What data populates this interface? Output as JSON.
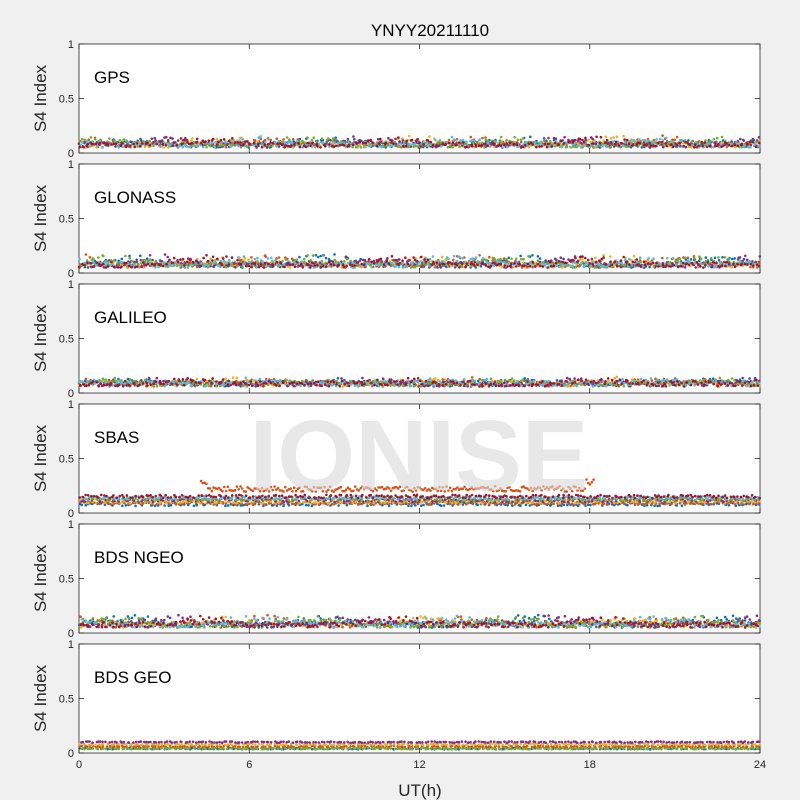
{
  "figure": {
    "title": "YNYY20211110",
    "xlabel": "UT(h)",
    "watermark": "IONISE"
  },
  "colors": [
    "#0072BD",
    "#D95319",
    "#EDB120",
    "#7E2F8E",
    "#77AC30",
    "#4DBEEE",
    "#A2142F"
  ],
  "chart_data": [
    {
      "type": "scatter",
      "panel": "GPS",
      "label": "GPS",
      "ylabel": "S4 Index",
      "xlim": [
        0,
        24
      ],
      "ylim": [
        0,
        1
      ],
      "xticks": [
        0,
        6,
        12,
        18,
        24
      ],
      "yticks": [
        0,
        0.5,
        1
      ],
      "yticklabels": [
        "0",
        "0.5",
        "1"
      ],
      "series_summary": {
        "baseline": 0.07,
        "typical_max": 0.18,
        "x_range": [
          0,
          24
        ],
        "series_count": 7
      }
    },
    {
      "type": "scatter",
      "panel": "GLONASS",
      "label": "GLONASS",
      "ylabel": "S4 Index",
      "xlim": [
        0,
        24
      ],
      "ylim": [
        0,
        1
      ],
      "xticks": [
        0,
        6,
        12,
        18,
        24
      ],
      "yticks": [
        0,
        0.5,
        1
      ],
      "yticklabels": [
        "0",
        "0.5",
        "1"
      ],
      "series_summary": {
        "baseline": 0.07,
        "typical_max": 0.2,
        "x_range": [
          0,
          24
        ],
        "series_count": 7
      }
    },
    {
      "type": "scatter",
      "panel": "GALILEO",
      "label": "GALILEO",
      "ylabel": "S4 Index",
      "xlim": [
        0,
        24
      ],
      "ylim": [
        0,
        1
      ],
      "xticks": [
        0,
        6,
        12,
        18,
        24
      ],
      "yticks": [
        0,
        0.5,
        1
      ],
      "yticklabels": [
        "0",
        "0.5",
        "1"
      ],
      "series_summary": {
        "baseline": 0.08,
        "typical_max": 0.15,
        "x_range": [
          0,
          24
        ],
        "series_count": 7
      }
    },
    {
      "type": "scatter",
      "panel": "SBAS",
      "label": "SBAS",
      "ylabel": "S4 Index",
      "xlim": [
        0,
        24
      ],
      "ylim": [
        0,
        1
      ],
      "xticks": [
        0,
        6,
        12,
        18,
        24
      ],
      "yticks": [
        0,
        0.5,
        1
      ],
      "yticklabels": [
        "0",
        "0.5",
        "1"
      ],
      "series_summary": {
        "baseline": 0.1,
        "elevated_series": {
          "x_range": [
            4.3,
            18.2
          ],
          "level": 0.22,
          "max": 0.32
        },
        "series_count": 7
      }
    },
    {
      "type": "scatter",
      "panel": "BDS NGEO",
      "label": "BDS NGEO",
      "ylabel": "S4 Index",
      "xlim": [
        0,
        24
      ],
      "ylim": [
        0,
        1
      ],
      "xticks": [
        0,
        6,
        12,
        18,
        24
      ],
      "yticks": [
        0,
        0.5,
        1
      ],
      "yticklabels": [
        "0",
        "0.5",
        "1"
      ],
      "series_summary": {
        "baseline": 0.07,
        "typical_max": 0.2,
        "x_range": [
          0,
          24
        ],
        "series_count": 7
      }
    },
    {
      "type": "scatter",
      "panel": "BDS GEO",
      "label": "BDS GEO",
      "ylabel": "S4 Index",
      "xlim": [
        0,
        24
      ],
      "ylim": [
        0,
        1
      ],
      "xticks": [
        0,
        6,
        12,
        18,
        24
      ],
      "yticks": [
        0,
        0.5,
        1
      ],
      "yticklabels": [
        "0",
        "0.5",
        "1"
      ],
      "xticklabels": [
        "0",
        "6",
        "12",
        "18",
        "24"
      ],
      "series_summary": {
        "baseline": 0.07,
        "levels": [
          0.04,
          0.06,
          0.08,
          0.1
        ],
        "series_count": 5
      }
    }
  ]
}
